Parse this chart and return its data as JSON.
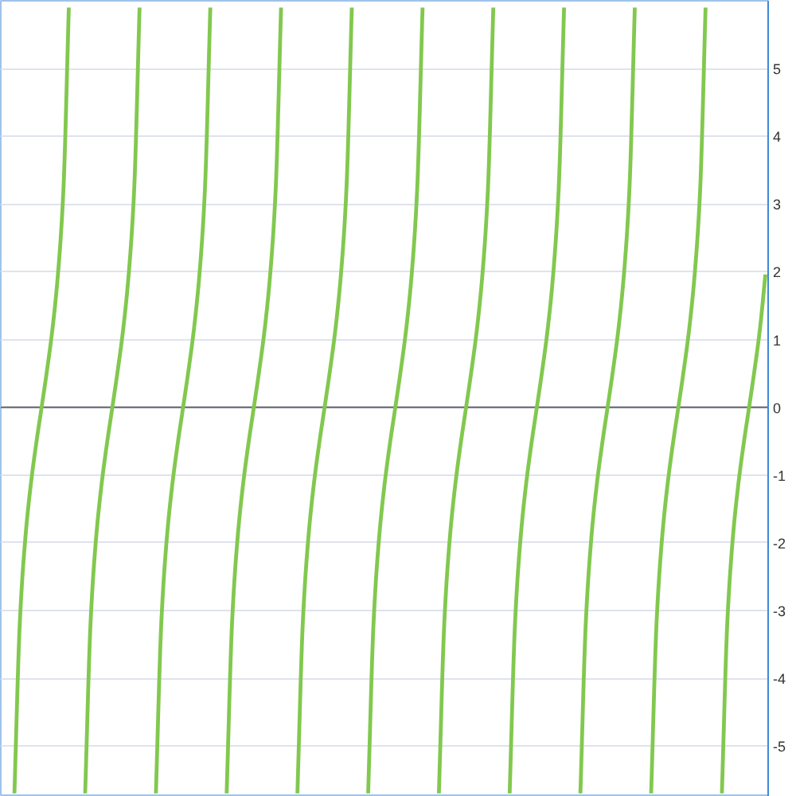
{
  "chart_data": {
    "type": "line",
    "categories": [
      null,
      null,
      null,
      null,
      null,
      null,
      null,
      null,
      null,
      null,
      null,
      null,
      null,
      null,
      null,
      null,
      null,
      null,
      null,
      null,
      null,
      null,
      null,
      null,
      null,
      null,
      null,
      null,
      null,
      null,
      null,
      null,
      null,
      null,
      null,
      null,
      null,
      null,
      null,
      null,
      null,
      null,
      null,
      null,
      null,
      null,
      null,
      null,
      null,
      null,
      null,
      null,
      null,
      null,
      null,
      null,
      null,
      null,
      null,
      null,
      null,
      null,
      null,
      null,
      null,
      null,
      null,
      null,
      null,
      null,
      null,
      null,
      null,
      null,
      null,
      null,
      null,
      null,
      null,
      null,
      null,
      null,
      null,
      null,
      null,
      null,
      null,
      null,
      null,
      null,
      null,
      null,
      null,
      null,
      null,
      null,
      null,
      null,
      null,
      null,
      null,
      null,
      null,
      null,
      null,
      null,
      null,
      null,
      null,
      null,
      null,
      null,
      null,
      null,
      null,
      null,
      null,
      null,
      null,
      null,
      null,
      null,
      null,
      null,
      null,
      null,
      null,
      null,
      null,
      null,
      null,
      null,
      null,
      null,
      null,
      null,
      null,
      null,
      null,
      null,
      null
    ],
    "series": [
      {
        "color": "#82c84f",
        "values": [
          null,
          null,
          -5.7,
          -3.17,
          -1.94,
          -1.15,
          -0.54,
          0,
          0.55,
          1.16,
          1.96,
          3.2,
          5.9,
          null,
          null,
          -5.7,
          -3.17,
          -1.94,
          -1.15,
          -0.54,
          0,
          0.55,
          1.16,
          1.96,
          3.2,
          5.9,
          null,
          null,
          -5.7,
          -3.17,
          -1.94,
          -1.15,
          -0.54,
          0,
          0.55,
          1.16,
          1.96,
          3.2,
          5.9,
          null,
          null,
          -5.7,
          -3.17,
          -1.94,
          -1.15,
          -0.54,
          0,
          0.55,
          1.16,
          1.96,
          3.2,
          5.9,
          null,
          null,
          -5.7,
          -3.17,
          -1.94,
          -1.15,
          -0.54,
          0,
          0.55,
          1.16,
          1.96,
          3.2,
          5.9,
          null,
          null,
          -5.7,
          -3.17,
          -1.94,
          -1.15,
          -0.54,
          0,
          0.55,
          1.16,
          1.96,
          3.2,
          5.9,
          null,
          null,
          -5.7,
          -3.17,
          -1.94,
          -1.15,
          -0.54,
          0,
          0.55,
          1.16,
          1.96,
          3.2,
          5.9,
          null,
          null,
          -5.7,
          -3.17,
          -1.94,
          -1.15,
          -0.54,
          0,
          0.55,
          1.16,
          1.96,
          3.2,
          5.9,
          null,
          null,
          -5.7,
          -3.17,
          -1.94,
          -1.15,
          -0.54,
          0,
          0.55,
          1.16,
          1.96,
          3.2,
          5.9,
          null,
          null,
          -5.7,
          -3.17,
          -1.94,
          -1.15,
          -0.54,
          0,
          0.55,
          1.16,
          1.96,
          3.2,
          5.9,
          null,
          null,
          -5.7,
          -3.17,
          -1.94,
          -1.15,
          -0.54,
          0,
          0.55,
          1.16,
          1.96
        ]
      }
    ],
    "ylim": [
      -5.75,
      6
    ],
    "yticks": [
      -5,
      -4,
      -3,
      -2,
      -1,
      0,
      1,
      2,
      3,
      4,
      5
    ],
    "grid": "y",
    "ref_lines": [
      {
        "axis": "y",
        "value": 0,
        "color": "#666666"
      }
    ]
  }
}
